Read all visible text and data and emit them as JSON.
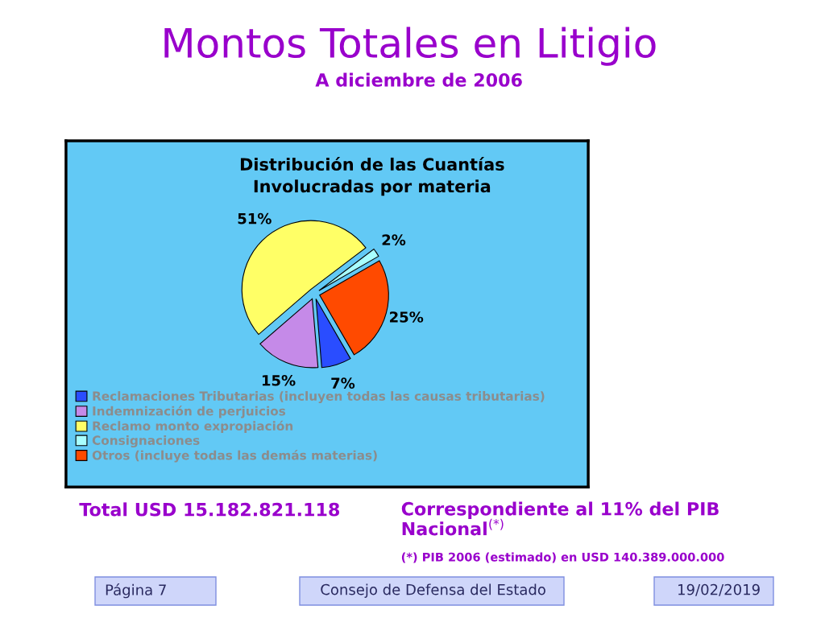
{
  "chart_data": {
    "type": "pie",
    "title": "Montos Totales en Litigio",
    "subtitle": "A diciembre de 2006",
    "categories": [
      "Reclamaciones Tributarias (incluyen todas las causas tributarias)",
      "Indemnización de perjuicios",
      "Reclamo monto expropiación",
      "Consignaciones",
      "Otros (incluye todas las demás materias)"
    ],
    "values": [
      7,
      15,
      51,
      2,
      25
    ],
    "colors": [
      "#2a4dff",
      "#c58ae8",
      "#ffff66",
      "#a8ffff",
      "#ff4a00"
    ],
    "value_labels": [
      "7%",
      "15%",
      "51%",
      "2%",
      "25%"
    ],
    "legend": "bottom",
    "annotations": [
      "Distribución de las Cuantías\nInvolucradas por materia",
      "Total USD 15.182.821.118",
      "Correspondiente al 11% del PIB\nNacional$^{(*)}$",
      "(*) PIB 2006 (estimado) en USD 140.389.000.000",
      "Página 7",
      "Consejo de Defensa del Estado",
      "19/02/2019"
    ]
  }
}
